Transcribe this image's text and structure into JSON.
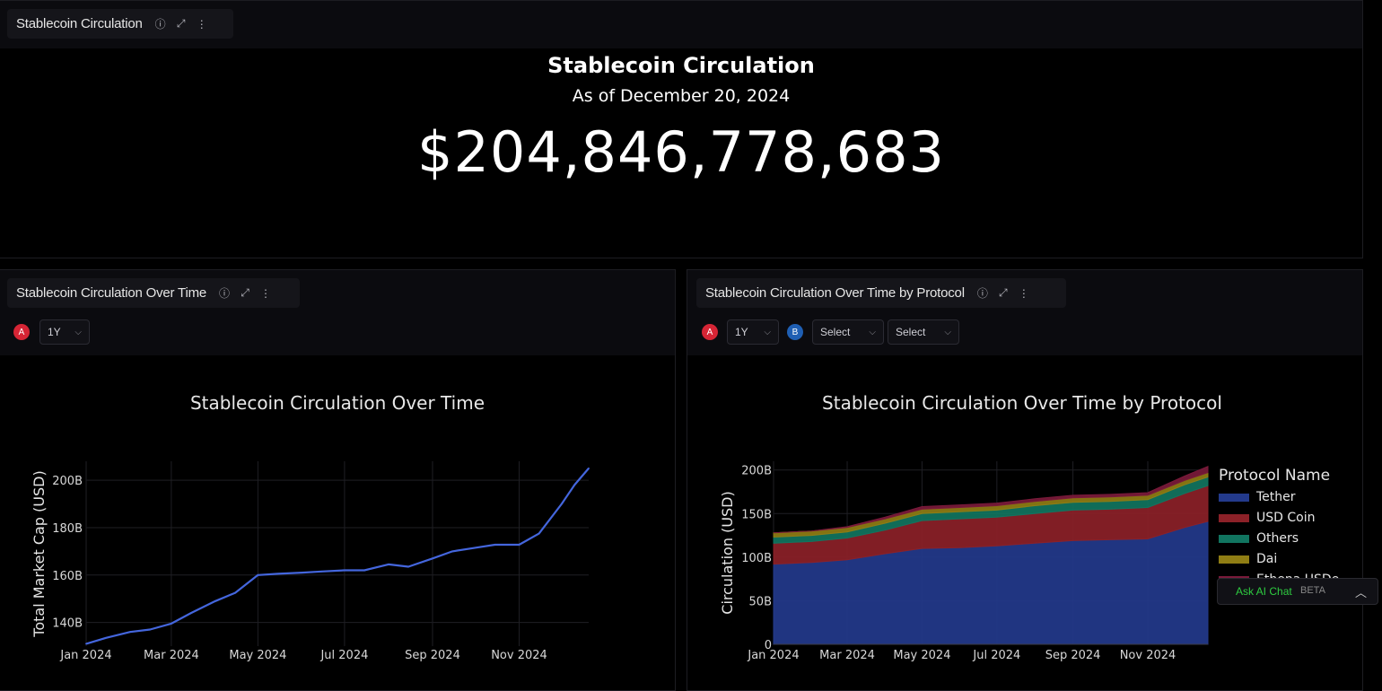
{
  "top_panel": {
    "header_title": "Stablecoin Circulation",
    "title": "Stablecoin Circulation",
    "subtitle": "As of December 20, 2024",
    "value": "$204,846,778,683"
  },
  "left_panel": {
    "header_title": "Stablecoin Circulation Over Time",
    "badge_a": "A",
    "period_select": "1Y",
    "chart_title": "Stablecoin Circulation Over Time"
  },
  "right_panel": {
    "header_title": "Stablecoin Circulation Over Time by Protocol",
    "badge_a": "A",
    "badge_b": "B",
    "period_select": "1Y",
    "select_1": "Select",
    "select_2": "Select",
    "chart_title": "Stablecoin Circulation Over Time by Protocol",
    "legend_title": "Protocol Name"
  },
  "chat": {
    "label": "Ask AI Chat",
    "beta": "BETA"
  },
  "icons": {
    "info": "info-icon",
    "expand": "expand-icon",
    "menu": "kebab-menu-icon",
    "chevron": "chevron-down-icon"
  },
  "colors": {
    "line": "#4466dd",
    "tether": "#233a8c",
    "usdc": "#8c2128",
    "others": "#117560",
    "dai": "#8f7d14",
    "ethena": "#7a1a3a"
  },
  "chart_data": [
    {
      "type": "line",
      "title": "Stablecoin Circulation Over Time",
      "xlabel": "",
      "ylabel": "Total Market Cap (USD)",
      "x_tick_labels": [
        "Jan 2024",
        "Mar 2024",
        "May 2024",
        "Jul 2024",
        "Sep 2024",
        "Nov 2024"
      ],
      "y_tick_labels": [
        "140B",
        "160B",
        "180B",
        "200B"
      ],
      "ylim": [
        130,
        208
      ],
      "grid": true,
      "series": [
        {
          "x": [
            "2024-01-01",
            "2024-01-15",
            "2024-02-01",
            "2024-02-15",
            "2024-03-01",
            "2024-03-15",
            "2024-04-01",
            "2024-04-15",
            "2024-05-01",
            "2024-05-15",
            "2024-06-01",
            "2024-06-15",
            "2024-07-01",
            "2024-07-15",
            "2024-08-01",
            "2024-08-15",
            "2024-09-01",
            "2024-09-15",
            "2024-10-01",
            "2024-10-15",
            "2024-11-01",
            "2024-11-15",
            "2024-12-01",
            "2024-12-10",
            "2024-12-20"
          ],
          "values": [
            131,
            133.5,
            136,
            137,
            139.5,
            144,
            149,
            152.5,
            160,
            160.5,
            161,
            161.5,
            162,
            162,
            164.5,
            163.5,
            167,
            170,
            171.5,
            172.8,
            172.8,
            177.5,
            190,
            198,
            205
          ]
        }
      ]
    },
    {
      "type": "area",
      "title": "Stablecoin Circulation Over Time by Protocol",
      "xlabel": "",
      "ylabel": "Circulation (USD)",
      "x_tick_labels": [
        "Jan 2024",
        "Mar 2024",
        "May 2024",
        "Jul 2024",
        "Sep 2024",
        "Nov 2024"
      ],
      "y_tick_labels": [
        "0",
        "50B",
        "100B",
        "150B",
        "200B"
      ],
      "ylim": [
        0,
        210
      ],
      "grid": true,
      "legend": "right",
      "x": [
        "2024-01-01",
        "2024-02-01",
        "2024-03-01",
        "2024-04-01",
        "2024-05-01",
        "2024-06-01",
        "2024-07-01",
        "2024-08-01",
        "2024-09-01",
        "2024-10-01",
        "2024-11-01",
        "2024-12-01",
        "2024-12-20"
      ],
      "series": [
        {
          "name": "Tether",
          "values": [
            92,
            94,
            97,
            104,
            110,
            111,
            113,
            116,
            119,
            120,
            121,
            134,
            141
          ]
        },
        {
          "name": "USD Coin",
          "values": [
            24,
            24,
            25,
            27,
            32,
            33,
            33,
            34,
            35,
            35,
            36,
            39,
            41
          ]
        },
        {
          "name": "Others",
          "values": [
            7,
            7,
            7,
            8,
            8,
            8,
            8,
            9,
            9,
            9,
            9,
            10,
            10
          ]
        },
        {
          "name": "Dai",
          "values": [
            5,
            5,
            5,
            5,
            5,
            5,
            5,
            5,
            5,
            5,
            5,
            5,
            5
          ]
        },
        {
          "name": "Ethena USDe",
          "values": [
            0,
            0,
            1,
            2,
            3,
            3,
            3,
            3,
            3,
            3,
            3,
            5,
            7
          ]
        }
      ]
    }
  ]
}
